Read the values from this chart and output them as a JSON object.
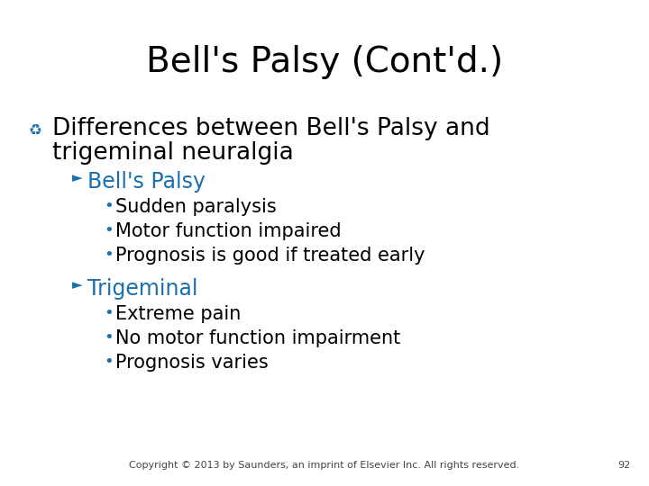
{
  "title": "Bell's Palsy (Cont'd.)",
  "title_fontsize": 28,
  "title_color": "#000000",
  "background_color": "#ffffff",
  "bullet_color": "#1a6faf",
  "text_color": "#000000",
  "main_bullet_line1": "Differences between Bell's Palsy and",
  "main_bullet_line2": "trigeminal neuralgia",
  "main_bullet_fontsize": 19,
  "sub_bullets": [
    {
      "label": "Bell's Palsy",
      "items": [
        "Sudden paralysis",
        "Motor function impaired",
        "Prognosis is good if treated early"
      ]
    },
    {
      "label": "Trigeminal",
      "items": [
        "Extreme pain",
        "No motor function impairment",
        "Prognosis varies"
      ]
    }
  ],
  "sub_label_fontsize": 17,
  "sub_item_fontsize": 15,
  "copyright": "Copyright © 2013 by Saunders, an imprint of Elsevier Inc. All rights reserved.",
  "page_number": "92",
  "copyright_fontsize": 8,
  "icon_symbol": "♻",
  "arrow_symbol": "►",
  "bullet_dot": "•"
}
